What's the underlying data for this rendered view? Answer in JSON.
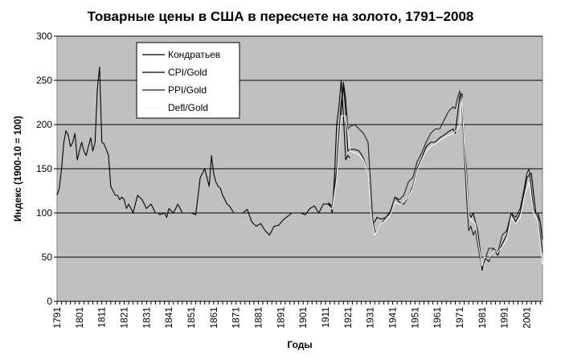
{
  "chart_data": {
    "type": "line",
    "title": "Товарные цены в США в пересчете на золото, 1791–2008",
    "xlabel": "Годы",
    "ylabel": "Индекс (1900-10 = 100)",
    "xlim": [
      1791,
      2008
    ],
    "ylim": [
      0,
      300
    ],
    "yticks": [
      0,
      50,
      100,
      150,
      200,
      250,
      300
    ],
    "xticks": [
      1791,
      1801,
      1811,
      1821,
      1831,
      1841,
      1851,
      1861,
      1871,
      1881,
      1891,
      1901,
      1911,
      1921,
      1931,
      1941,
      1951,
      1961,
      1971,
      1981,
      1991,
      2001
    ],
    "plot_background": "#c0c0c0",
    "grid": "horizontal",
    "legend_position": "top-left",
    "series": [
      {
        "name": "Кондратьев",
        "color": "#000000",
        "x": [
          1791,
          1792,
          1793,
          1794,
          1795,
          1796,
          1797,
          1798,
          1799,
          1800,
          1801,
          1802,
          1803,
          1804,
          1805,
          1806,
          1807,
          1808,
          1809,
          1810,
          1811,
          1812,
          1813,
          1814,
          1815,
          1816,
          1817,
          1818,
          1819,
          1820,
          1821,
          1822,
          1823,
          1825,
          1827,
          1829,
          1831,
          1833,
          1835,
          1836,
          1837,
          1839,
          1840,
          1841,
          1843,
          1845,
          1847,
          1849,
          1851,
          1853,
          1855,
          1857,
          1859,
          1860,
          1861,
          1862,
          1863,
          1864,
          1865,
          1866,
          1867,
          1868,
          1870,
          1872,
          1874,
          1876,
          1878,
          1880,
          1882,
          1884,
          1886,
          1888,
          1890,
          1892,
          1894,
          1896,
          1898,
          1900,
          1902,
          1904,
          1906,
          1908,
          1910,
          1912,
          1913,
          1914,
          1915,
          1916,
          1917,
          1918,
          1919,
          1920,
          1921,
          1922
        ],
        "y": [
          120,
          128,
          150,
          180,
          193,
          188,
          175,
          180,
          190,
          160,
          170,
          180,
          170,
          165,
          175,
          185,
          170,
          180,
          240,
          265,
          180,
          178,
          172,
          165,
          130,
          125,
          120,
          120,
          115,
          118,
          115,
          105,
          110,
          100,
          120,
          115,
          105,
          110,
          100,
          100,
          98,
          100,
          95,
          105,
          100,
          110,
          100,
          100,
          100,
          98,
          140,
          150,
          130,
          165,
          145,
          135,
          130,
          128,
          120,
          115,
          110,
          108,
          100,
          100,
          100,
          104,
          90,
          85,
          88,
          80,
          75,
          85,
          86,
          92,
          96,
          100,
          100,
          100,
          98,
          105,
          108,
          100,
          110,
          110,
          110,
          100,
          140,
          200,
          220,
          250,
          210,
          160,
          165,
          162
        ]
      },
      {
        "name": "CPI/Gold",
        "color": "#000000",
        "x": [
          1912,
          1914,
          1916,
          1918,
          1919,
          1920,
          1921,
          1922,
          1924,
          1926,
          1928,
          1930,
          1931,
          1932,
          1933,
          1934,
          1936,
          1938,
          1940,
          1942,
          1944,
          1946,
          1948,
          1950,
          1952,
          1954,
          1956,
          1958,
          1960,
          1962,
          1964,
          1966,
          1968,
          1969,
          1970,
          1971,
          1972,
          1973,
          1974,
          1975,
          1976,
          1977,
          1978,
          1979,
          1980,
          1981,
          1982,
          1984,
          1986,
          1988,
          1990,
          1992,
          1994,
          1996,
          1998,
          2000,
          2001,
          2003,
          2005,
          2006,
          2007,
          2008
        ],
        "y": [
          110,
          105,
          140,
          215,
          245,
          215,
          170,
          172,
          172,
          170,
          162,
          145,
          110,
          88,
          90,
          95,
          93,
          95,
          100,
          118,
          112,
          110,
          118,
          130,
          150,
          162,
          175,
          180,
          180,
          185,
          188,
          192,
          195,
          190,
          210,
          232,
          235,
          180,
          150,
          100,
          95,
          100,
          90,
          80,
          60,
          35,
          50,
          45,
          60,
          52,
          65,
          75,
          100,
          90,
          100,
          125,
          140,
          145,
          100,
          100,
          90,
          70
        ]
      },
      {
        "name": "PPI/Gold",
        "color": "#1e1e1e",
        "x": [
          1912,
          1914,
          1916,
          1918,
          1919,
          1920,
          1921,
          1922,
          1924,
          1926,
          1928,
          1930,
          1931,
          1932,
          1933,
          1934,
          1936,
          1938,
          1940,
          1942,
          1944,
          1946,
          1948,
          1950,
          1952,
          1954,
          1956,
          1958,
          1960,
          1962,
          1964,
          1966,
          1968,
          1969,
          1970,
          1971,
          1972,
          1973,
          1974,
          1975,
          1976,
          1977,
          1978,
          1979,
          1980,
          1981,
          1982,
          1984,
          1986,
          1988,
          1990,
          1992,
          1994,
          1996,
          1998,
          2000,
          2001,
          2002,
          2004,
          2006,
          2008
        ],
        "y": [
          112,
          108,
          150,
          225,
          248,
          230,
          195,
          198,
          200,
          195,
          190,
          180,
          140,
          95,
          78,
          80,
          88,
          95,
          102,
          118,
          115,
          120,
          135,
          140,
          158,
          168,
          180,
          190,
          195,
          195,
          205,
          215,
          220,
          218,
          230,
          238,
          220,
          170,
          120,
          80,
          85,
          75,
          80,
          65,
          50,
          40,
          45,
          60,
          60,
          55,
          75,
          80,
          100,
          95,
          105,
          130,
          145,
          150,
          105,
          95,
          55
        ]
      },
      {
        "name": "Defl/Gold",
        "color": "#f8f8f8",
        "x": [
          1912,
          1914,
          1916,
          1918,
          1920,
          1922,
          1924,
          1926,
          1928,
          1930,
          1931,
          1932,
          1933,
          1934,
          1936,
          1938,
          1940,
          1942,
          1944,
          1946,
          1948,
          1950,
          1952,
          1954,
          1956,
          1958,
          1960,
          1962,
          1964,
          1966,
          1968,
          1970,
          1971,
          1972,
          1973,
          1974,
          1975,
          1976,
          1978,
          1980,
          1981,
          1982,
          1984,
          1986,
          1988,
          1990,
          1992,
          1994,
          1996,
          1998,
          2000,
          2002,
          2004,
          2006,
          2008
        ],
        "y": [
          108,
          104,
          138,
          210,
          210,
          170,
          168,
          166,
          160,
          145,
          108,
          88,
          75,
          80,
          88,
          92,
          98,
          112,
          110,
          112,
          118,
          128,
          148,
          160,
          170,
          175,
          178,
          182,
          185,
          188,
          190,
          195,
          200,
          230,
          180,
          140,
          98,
          92,
          88,
          55,
          40,
          50,
          48,
          58,
          55,
          62,
          70,
          95,
          88,
          95,
          120,
          135,
          100,
          90,
          42
        ]
      }
    ]
  }
}
